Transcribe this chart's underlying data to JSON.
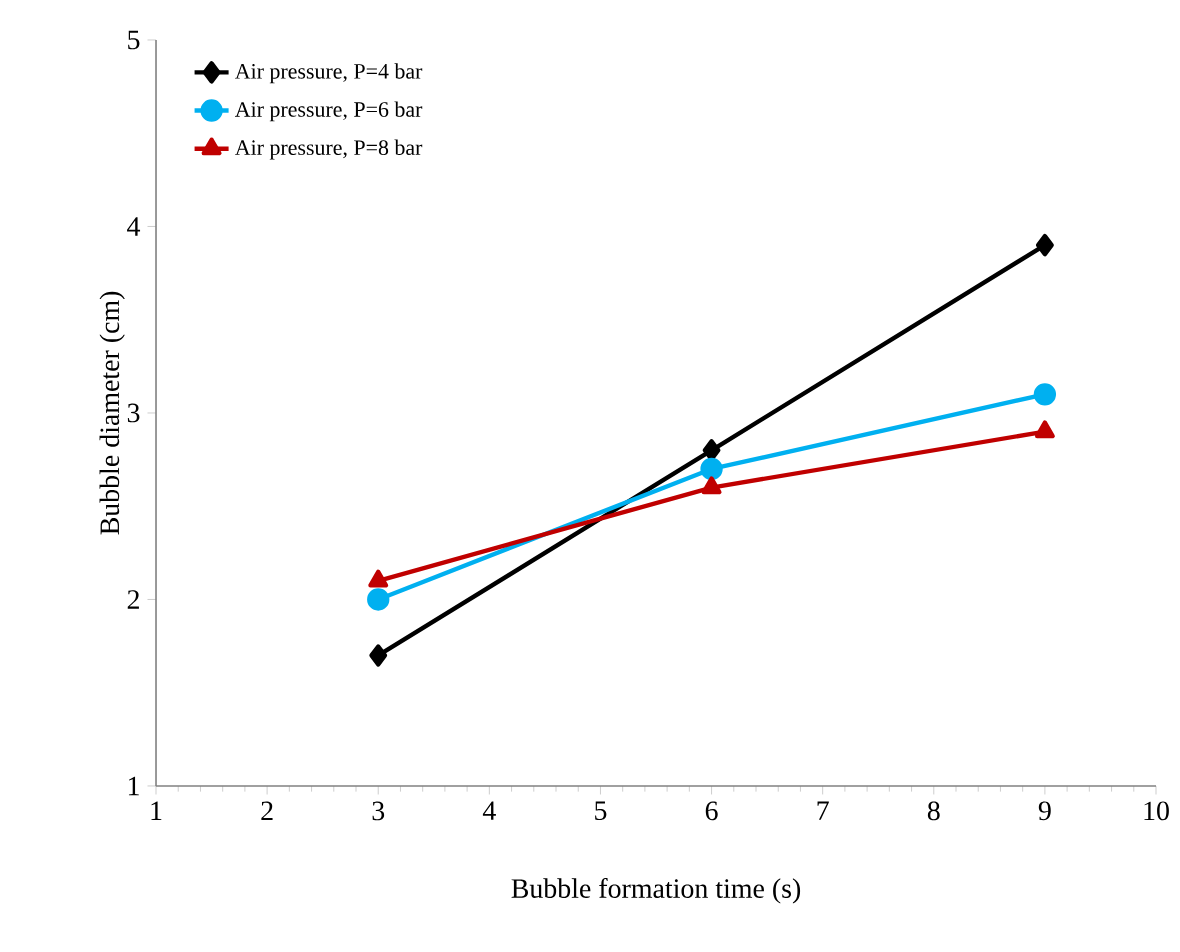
{
  "chart_data": {
    "type": "line",
    "xlabel": "Bubble formation time (s)",
    "ylabel": "Bubble diameter  (cm)",
    "x": [
      3,
      6,
      9
    ],
    "series": [
      {
        "name": "Air pressure, P=4 bar",
        "color": "#000000",
        "marker": "diamond",
        "values": [
          1.7,
          2.8,
          3.9
        ]
      },
      {
        "name": "Air pressure, P=6 bar",
        "color": "#00b0f0",
        "marker": "circle",
        "values": [
          2.0,
          2.7,
          3.1
        ]
      },
      {
        "name": "Air pressure, P=8 bar",
        "color": "#c00000",
        "marker": "triangle",
        "values": [
          2.1,
          2.6,
          2.9
        ]
      }
    ],
    "xlim": [
      1,
      10
    ],
    "xticks": [
      1,
      2,
      3,
      4,
      5,
      6,
      7,
      8,
      9,
      10
    ],
    "ylim": [
      1,
      5
    ],
    "yticks": [
      1,
      2,
      3,
      4,
      5
    ],
    "grid": false,
    "legend": "top left",
    "line_style": "solid"
  }
}
